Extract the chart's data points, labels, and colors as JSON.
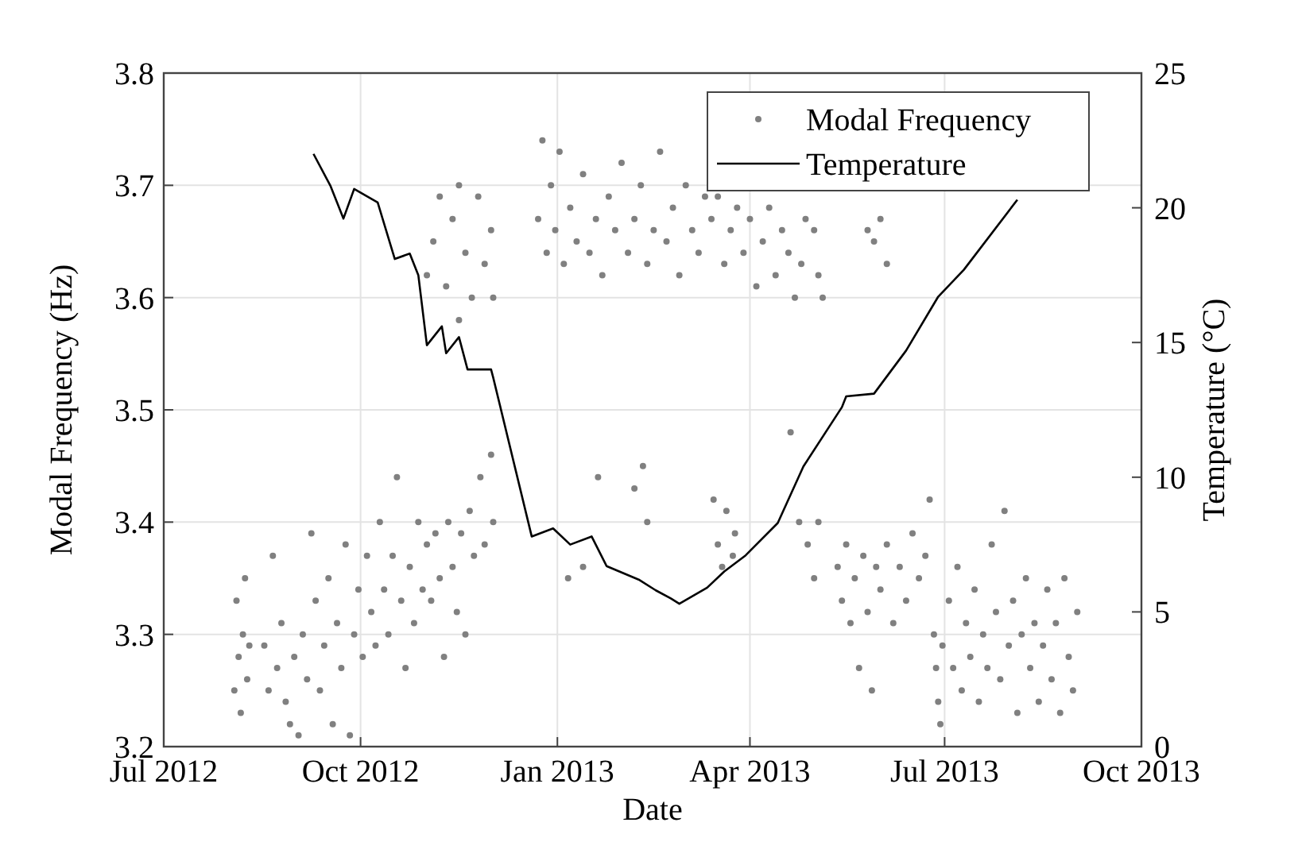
{
  "chart_data": {
    "type": "scatter",
    "xlabel": "Date",
    "ylabel": "Modal Frequency (Hz)",
    "y2label": "Temperature (°C)",
    "xlim": [
      "2012-07-01",
      "2013-10-01"
    ],
    "xticks": [
      {
        "value": "2012-07-01",
        "label": "Jul 2012"
      },
      {
        "value": "2012-10-01",
        "label": "Oct 2012"
      },
      {
        "value": "2013-01-01",
        "label": "Jan 2013"
      },
      {
        "value": "2013-04-01",
        "label": "Apr 2013"
      },
      {
        "value": "2013-07-01",
        "label": "Jul 2013"
      },
      {
        "value": "2013-10-01",
        "label": "Oct 2013"
      }
    ],
    "ylim": [
      3.2,
      3.8
    ],
    "yticks": [
      3.2,
      3.3,
      3.4,
      3.5,
      3.6,
      3.7,
      3.8
    ],
    "y2lim": [
      0,
      25
    ],
    "y2ticks": [
      0,
      5,
      10,
      15,
      20,
      25
    ],
    "grid": true,
    "legend": "top right",
    "series": [
      {
        "name": "Modal Frequency",
        "marker": "circle",
        "color": "#808080",
        "x": [
          "2012-08-03",
          "2012-08-04",
          "2012-08-05",
          "2012-08-06",
          "2012-08-07",
          "2012-08-08",
          "2012-08-09",
          "2012-08-10",
          "2012-08-17",
          "2012-08-19",
          "2012-08-21",
          "2012-08-23",
          "2012-08-25",
          "2012-08-27",
          "2012-08-29",
          "2012-08-31",
          "2012-09-02",
          "2012-09-04",
          "2012-09-06",
          "2012-09-08",
          "2012-09-10",
          "2012-09-12",
          "2012-09-14",
          "2012-09-16",
          "2012-09-18",
          "2012-09-20",
          "2012-09-22",
          "2012-09-24",
          "2012-09-26",
          "2012-09-28",
          "2012-09-30",
          "2012-10-02",
          "2012-10-04",
          "2012-10-06",
          "2012-10-08",
          "2012-10-10",
          "2012-10-12",
          "2012-10-14",
          "2012-10-16",
          "2012-10-18",
          "2012-10-20",
          "2012-10-22",
          "2012-10-24",
          "2012-10-26",
          "2012-10-28",
          "2012-10-30",
          "2012-11-01",
          "2012-11-03",
          "2012-11-05",
          "2012-11-07",
          "2012-11-09",
          "2012-11-11",
          "2012-11-13",
          "2012-11-15",
          "2012-11-17",
          "2012-11-19",
          "2012-11-21",
          "2012-11-23",
          "2012-11-26",
          "2012-11-28",
          "2012-12-01",
          "2012-12-02",
          "2012-11-01",
          "2012-11-04",
          "2012-11-07",
          "2012-11-10",
          "2012-11-13",
          "2012-11-16",
          "2012-11-19",
          "2012-11-22",
          "2012-11-25",
          "2012-11-28",
          "2012-12-01",
          "2012-12-02",
          "2012-11-16",
          "2012-12-23",
          "2012-12-25",
          "2012-12-27",
          "2012-12-29",
          "2012-12-31",
          "2013-01-02",
          "2013-01-04",
          "2013-01-07",
          "2013-01-10",
          "2013-01-13",
          "2013-01-16",
          "2013-01-19",
          "2013-01-22",
          "2013-01-25",
          "2013-01-28",
          "2013-01-31",
          "2013-02-03",
          "2013-02-06",
          "2013-02-09",
          "2013-02-12",
          "2013-02-15",
          "2013-02-18",
          "2013-02-21",
          "2013-02-24",
          "2013-02-27",
          "2013-03-02",
          "2013-03-05",
          "2013-03-08",
          "2013-03-11",
          "2013-03-14",
          "2013-03-17",
          "2013-03-20",
          "2013-03-23",
          "2013-03-26",
          "2013-03-29",
          "2013-04-01",
          "2013-04-04",
          "2013-04-07",
          "2013-04-10",
          "2013-04-13",
          "2013-04-16",
          "2013-04-19",
          "2013-04-22",
          "2013-04-25",
          "2013-04-27",
          "2013-05-01",
          "2013-05-03",
          "2013-05-05",
          "2013-05-26",
          "2013-05-29",
          "2013-06-01",
          "2013-06-04",
          "2013-01-06",
          "2013-01-13",
          "2013-01-20",
          "2013-02-06",
          "2013-02-10",
          "2013-02-12",
          "2013-03-15",
          "2013-03-17",
          "2013-03-19",
          "2013-03-21",
          "2013-03-24",
          "2013-03-25",
          "2013-04-20",
          "2013-04-24",
          "2013-04-28",
          "2013-05-01",
          "2013-05-03",
          "2013-05-12",
          "2013-05-14",
          "2013-05-16",
          "2013-05-18",
          "2013-05-20",
          "2013-05-22",
          "2013-05-24",
          "2013-05-26",
          "2013-05-28",
          "2013-05-30",
          "2013-06-01",
          "2013-06-04",
          "2013-06-07",
          "2013-06-10",
          "2013-06-13",
          "2013-06-16",
          "2013-06-19",
          "2013-06-22",
          "2013-06-24",
          "2013-06-26",
          "2013-06-27",
          "2013-06-28",
          "2013-06-29",
          "2013-06-30",
          "2013-07-03",
          "2013-07-05",
          "2013-07-07",
          "2013-07-09",
          "2013-07-11",
          "2013-07-13",
          "2013-07-15",
          "2013-07-17",
          "2013-07-19",
          "2013-07-21",
          "2013-07-23",
          "2013-07-25",
          "2013-07-27",
          "2013-07-29",
          "2013-07-31",
          "2013-08-02",
          "2013-08-04",
          "2013-08-06",
          "2013-08-08",
          "2013-08-10",
          "2013-08-12",
          "2013-08-14",
          "2013-08-16",
          "2013-08-18",
          "2013-08-20",
          "2013-08-22",
          "2013-08-24",
          "2013-08-26",
          "2013-08-28",
          "2013-08-30",
          "2013-09-01"
        ],
        "values": [
          3.25,
          3.33,
          3.28,
          3.23,
          3.3,
          3.35,
          3.26,
          3.29,
          3.29,
          3.25,
          3.37,
          3.27,
          3.31,
          3.24,
          3.22,
          3.28,
          3.21,
          3.3,
          3.26,
          3.39,
          3.33,
          3.25,
          3.29,
          3.35,
          3.22,
          3.31,
          3.27,
          3.38,
          3.21,
          3.3,
          3.34,
          3.28,
          3.37,
          3.32,
          3.29,
          3.4,
          3.34,
          3.3,
          3.37,
          3.44,
          3.33,
          3.27,
          3.36,
          3.31,
          3.4,
          3.34,
          3.38,
          3.33,
          3.39,
          3.35,
          3.28,
          3.4,
          3.36,
          3.32,
          3.39,
          3.3,
          3.41,
          3.37,
          3.44,
          3.38,
          3.46,
          3.4,
          3.62,
          3.65,
          3.69,
          3.61,
          3.67,
          3.7,
          3.64,
          3.6,
          3.69,
          3.63,
          3.66,
          3.6,
          3.58,
          3.67,
          3.74,
          3.64,
          3.7,
          3.66,
          3.73,
          3.63,
          3.68,
          3.65,
          3.71,
          3.64,
          3.67,
          3.62,
          3.69,
          3.66,
          3.72,
          3.64,
          3.67,
          3.7,
          3.63,
          3.66,
          3.73,
          3.65,
          3.68,
          3.62,
          3.7,
          3.66,
          3.64,
          3.69,
          3.67,
          3.69,
          3.63,
          3.66,
          3.68,
          3.64,
          3.67,
          3.61,
          3.65,
          3.68,
          3.62,
          3.66,
          3.64,
          3.6,
          3.63,
          3.67,
          3.66,
          3.62,
          3.6,
          3.66,
          3.65,
          3.67,
          3.63,
          3.35,
          3.36,
          3.44,
          3.43,
          3.45,
          3.4,
          3.42,
          3.38,
          3.36,
          3.41,
          3.37,
          3.39,
          3.48,
          3.4,
          3.38,
          3.35,
          3.4,
          3.36,
          3.33,
          3.38,
          3.31,
          3.35,
          3.27,
          3.37,
          3.32,
          3.25,
          3.36,
          3.34,
          3.38,
          3.31,
          3.36,
          3.33,
          3.39,
          3.35,
          3.37,
          3.42,
          3.3,
          3.27,
          3.24,
          3.22,
          3.29,
          3.33,
          3.27,
          3.36,
          3.25,
          3.31,
          3.28,
          3.34,
          3.24,
          3.3,
          3.27,
          3.38,
          3.32,
          3.26,
          3.41,
          3.29,
          3.33,
          3.23,
          3.3,
          3.35,
          3.27,
          3.31,
          3.24,
          3.29,
          3.34,
          3.26,
          3.31,
          3.23,
          3.35,
          3.28,
          3.25,
          3.32
        ]
      },
      {
        "name": "Temperature",
        "type": "line",
        "axis": "y2",
        "marker": "none",
        "line_style": "solid",
        "color": "#000000",
        "x": [
          "2012-09-09",
          "2012-09-17",
          "2012-09-23",
          "2012-09-28",
          "2012-10-09",
          "2012-10-17",
          "2012-10-24",
          "2012-10-28",
          "2012-11-01",
          "2012-11-08",
          "2012-11-10",
          "2012-11-16",
          "2012-11-20",
          "2012-12-01",
          "2012-12-02",
          "2012-12-20",
          "2012-12-30",
          "2013-01-07",
          "2013-01-17",
          "2013-01-24",
          "2013-02-08",
          "2013-02-16",
          "2013-02-23",
          "2013-02-27",
          "2013-03-12",
          "2013-03-20",
          "2013-03-30",
          "2013-04-14",
          "2013-04-26",
          "2013-05-14",
          "2013-05-16",
          "2013-05-29",
          "2013-06-13",
          "2013-06-28",
          "2013-07-10",
          "2013-08-04"
        ],
        "values": [
          22.0,
          20.8,
          19.6,
          20.7,
          20.2,
          18.1,
          18.3,
          17.5,
          14.9,
          15.6,
          14.6,
          15.2,
          14.0,
          14.0,
          13.7,
          7.8,
          8.1,
          7.5,
          7.8,
          6.7,
          6.2,
          5.8,
          5.5,
          5.3,
          5.9,
          6.5,
          7.1,
          8.3,
          10.4,
          12.6,
          13.0,
          13.1,
          14.7,
          16.7,
          17.7,
          20.3
        ]
      }
    ]
  }
}
